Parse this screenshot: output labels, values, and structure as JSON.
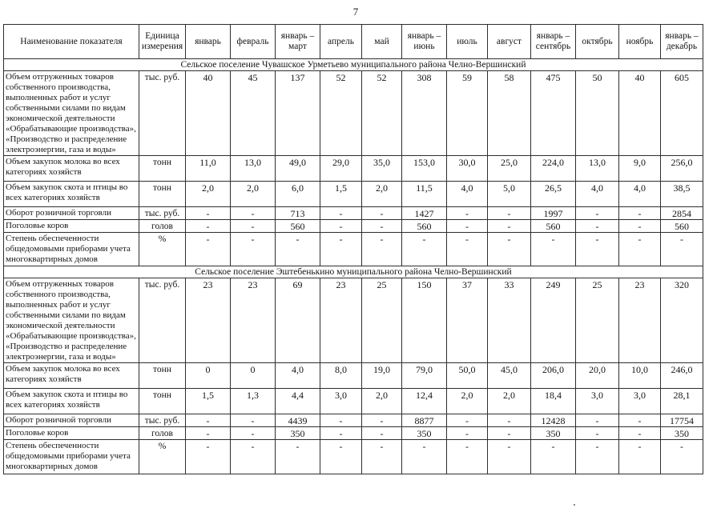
{
  "page": {
    "number": "7"
  },
  "table": {
    "header": {
      "indicator": "Наименование показателя",
      "unit": "Единица измерения",
      "periods": [
        "январь",
        "февраль",
        "январь – март",
        "апрель",
        "май",
        "январь – июнь",
        "июль",
        "август",
        "январь – сентябрь",
        "октябрь",
        "ноябрь",
        "январь – декабрь"
      ]
    },
    "sections": [
      {
        "title": "Сельское поселение Чувашское Урметьево муниципального района Челно-Вершинский",
        "rows": [
          {
            "indicator": "Объем отгруженных товаров собственного производства, выполненных работ и услуг собственными силами по видам экономической деятельности «Обрабатывающие производства», «Производство и распределение электроэнергии, газа и воды»",
            "unit": "тыс. руб.",
            "values": [
              "40",
              "45",
              "137",
              "52",
              "52",
              "308",
              "59",
              "58",
              "475",
              "50",
              "40",
              "605"
            ]
          },
          {
            "indicator": "Объем закупок молока во всех категориях хозяйств",
            "unit": "тонн",
            "values": [
              "11,0",
              "13,0",
              "49,0",
              "29,0",
              "35,0",
              "153,0",
              "30,0",
              "25,0",
              "224,0",
              "13,0",
              "9,0",
              "256,0"
            ]
          },
          {
            "indicator": "Объем закупок скота и птицы во всех категориях хозяйств",
            "unit": "тонн",
            "values": [
              "2,0",
              "2,0",
              "6,0",
              "1,5",
              "2,0",
              "11,5",
              "4,0",
              "5,0",
              "26,5",
              "4,0",
              "4,0",
              "38,5"
            ]
          },
          {
            "indicator": "Оборот розничной торговли",
            "unit": "тыс. руб.",
            "values": [
              "-",
              "-",
              "713",
              "-",
              "-",
              "1427",
              "-",
              "-",
              "1997",
              "-",
              "-",
              "2854"
            ]
          },
          {
            "indicator": "Поголовье коров",
            "unit": "голов",
            "values": [
              "-",
              "-",
              "560",
              "-",
              "-",
              "560",
              "-",
              "-",
              "560",
              "-",
              "-",
              "560"
            ]
          },
          {
            "indicator": "Степень обеспеченности общедомовыми приборами учета многоквартирных домов",
            "unit": "%",
            "values": [
              "-",
              "-",
              "-",
              "-",
              "-",
              "-",
              "-",
              "-",
              "-",
              "-",
              "-",
              "-"
            ]
          }
        ]
      },
      {
        "title": "Сельское поселение Эштебенькино муниципального района Челно-Вершинский",
        "rows": [
          {
            "indicator": "Объем отгруженных товаров собственного производства, выполненных работ и услуг собственными силами по видам экономической деятельности «Обрабатывающие производства», «Производство и распределение электроэнергии, газа и воды»",
            "unit": "тыс. руб.",
            "values": [
              "23",
              "23",
              "69",
              "23",
              "25",
              "150",
              "37",
              "33",
              "249",
              "25",
              "23",
              "320"
            ]
          },
          {
            "indicator": "Объем закупок молока во всех категориях хозяйств",
            "unit": "тонн",
            "values": [
              "0",
              "0",
              "4,0",
              "8,0",
              "19,0",
              "79,0",
              "50,0",
              "45,0",
              "206,0",
              "20,0",
              "10,0",
              "246,0"
            ]
          },
          {
            "indicator": "Объем закупок скота и птицы во всех категориях хозяйств",
            "unit": "тонн",
            "values": [
              "1,5",
              "1,3",
              "4,4",
              "3,0",
              "2,0",
              "12,4",
              "2,0",
              "2,0",
              "18,4",
              "3,0",
              "3,0",
              "28,1"
            ]
          },
          {
            "indicator": "Оборот розничной торговли",
            "unit": "тыс. руб.",
            "values": [
              "-",
              "-",
              "4439",
              "-",
              "-",
              "8877",
              "-",
              "-",
              "12428",
              "-",
              "-",
              "17754"
            ]
          },
          {
            "indicator": "Поголовье коров",
            "unit": "голов",
            "values": [
              "-",
              "-",
              "350",
              "-",
              "-",
              "350",
              "-",
              "-",
              "350",
              "-",
              "-",
              "350"
            ]
          },
          {
            "indicator": "Степень обеспеченности общедомовыми приборами учета многоквартирных домов",
            "unit": "%",
            "values": [
              "-",
              "-",
              "-",
              "-",
              "-",
              "-",
              "-",
              "-",
              "-",
              "-",
              "-",
              "-"
            ]
          }
        ]
      }
    ]
  }
}
